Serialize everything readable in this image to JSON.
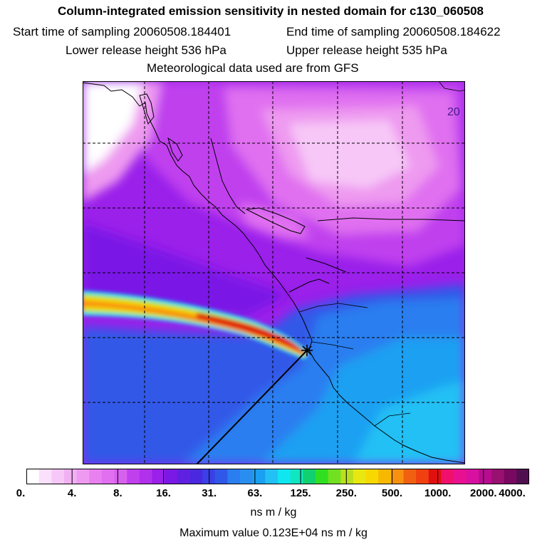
{
  "header": {
    "title": "Column-integrated emission sensitivity in nested domain for c130_060508",
    "start_label": "Start time of sampling 20060508.184401",
    "end_label": "End time of sampling 20060508.184622",
    "lower_label": "Lower release height  536 hPa",
    "upper_label": "Upper release height  535 hPa",
    "met_label": "Meteorological data used are from GFS"
  },
  "map": {
    "latitude_label": "20",
    "colors": {
      "white": "#ffffff",
      "light_pink": "#f7c8f7",
      "pink": "#ee9af0",
      "light_magenta": "#e070f0",
      "magenta": "#c040ee",
      "violet": "#9a20ea",
      "purple": "#7a18e6",
      "indigo": "#4a28e0",
      "royal_blue": "#3058e8",
      "blue": "#2a7ef0",
      "sky_blue": "#1aa0f2",
      "light_sky": "#22c0f4",
      "cyan": "#10e6f0",
      "green": "#10d070",
      "yellow_green": "#b8e020",
      "yellow": "#f8d800",
      "orange": "#f89010",
      "red_orange": "#f04010",
      "red": "#e01010"
    }
  },
  "colorbar": {
    "tick_labels": [
      "0.",
      "4.",
      "8.",
      "16.",
      "31.",
      "63.",
      "125.",
      "250.",
      "500.",
      "1000.",
      "2000.",
      "4000."
    ],
    "colors": [
      "#ffffff",
      "#fbe0fb",
      "#f7c8f7",
      "#f2b0f4",
      "#ee9af0",
      "#e880f0",
      "#e070f0",
      "#d860ee",
      "#c040ee",
      "#b030ec",
      "#9a20ea",
      "#7a18e6",
      "#6020e2",
      "#4a28e0",
      "#3a40e6",
      "#3058e8",
      "#2a7ef0",
      "#2a8ef0",
      "#1aa0f2",
      "#22c0f4",
      "#10e6f0",
      "#10e6c0",
      "#10d070",
      "#30e020",
      "#70e020",
      "#b8e020",
      "#e8e810",
      "#f8d800",
      "#f8b800",
      "#f89010",
      "#f06010",
      "#f04010",
      "#e01010",
      "#f0106c",
      "#e81090",
      "#d810a0",
      "#b80c90",
      "#981070",
      "#780860",
      "#501050"
    ],
    "units": "ns m / kg",
    "max_value": "Maximum value  0.123E+04 ns m / kg"
  }
}
